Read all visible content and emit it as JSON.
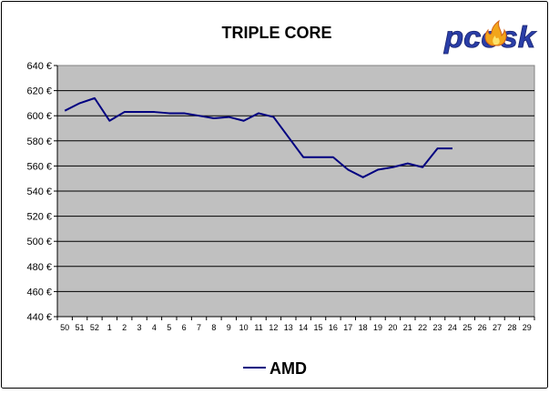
{
  "chart_data": {
    "type": "line",
    "title": "TRIPLE CORE",
    "xlabel": "",
    "ylabel": "",
    "categories": [
      "50",
      "51",
      "52",
      "1",
      "2",
      "3",
      "4",
      "5",
      "6",
      "7",
      "8",
      "9",
      "10",
      "11",
      "12",
      "13",
      "14",
      "15",
      "16",
      "17",
      "18",
      "19",
      "20",
      "21",
      "22",
      "23",
      "24",
      "25",
      "26",
      "27",
      "28",
      "29"
    ],
    "series": [
      {
        "name": "AMD",
        "color": "#000080",
        "values": [
          604,
          610,
          614,
          596,
          603,
          603,
          603,
          602,
          602,
          600,
          598,
          599,
          596,
          602,
          599,
          583,
          567,
          567,
          567,
          557,
          551,
          557,
          559,
          562,
          559,
          574,
          574,
          null,
          null,
          null,
          null,
          null
        ]
      }
    ],
    "ylim": [
      440,
      640
    ],
    "yticks": [
      "440 €",
      "460 €",
      "480 €",
      "500 €",
      "520 €",
      "540 €",
      "560 €",
      "580 €",
      "600 €",
      "620 €",
      "640 €"
    ],
    "grid": true,
    "legend": "bottom",
    "logo": {
      "text": "pcosk",
      "colors": [
        "#2a3ea8",
        "#f2a51a"
      ]
    },
    "colors": {
      "plot_background": "#c0c0c0",
      "chart_background": "#ffffff",
      "gridline": "#000000",
      "line": "#000080"
    }
  }
}
